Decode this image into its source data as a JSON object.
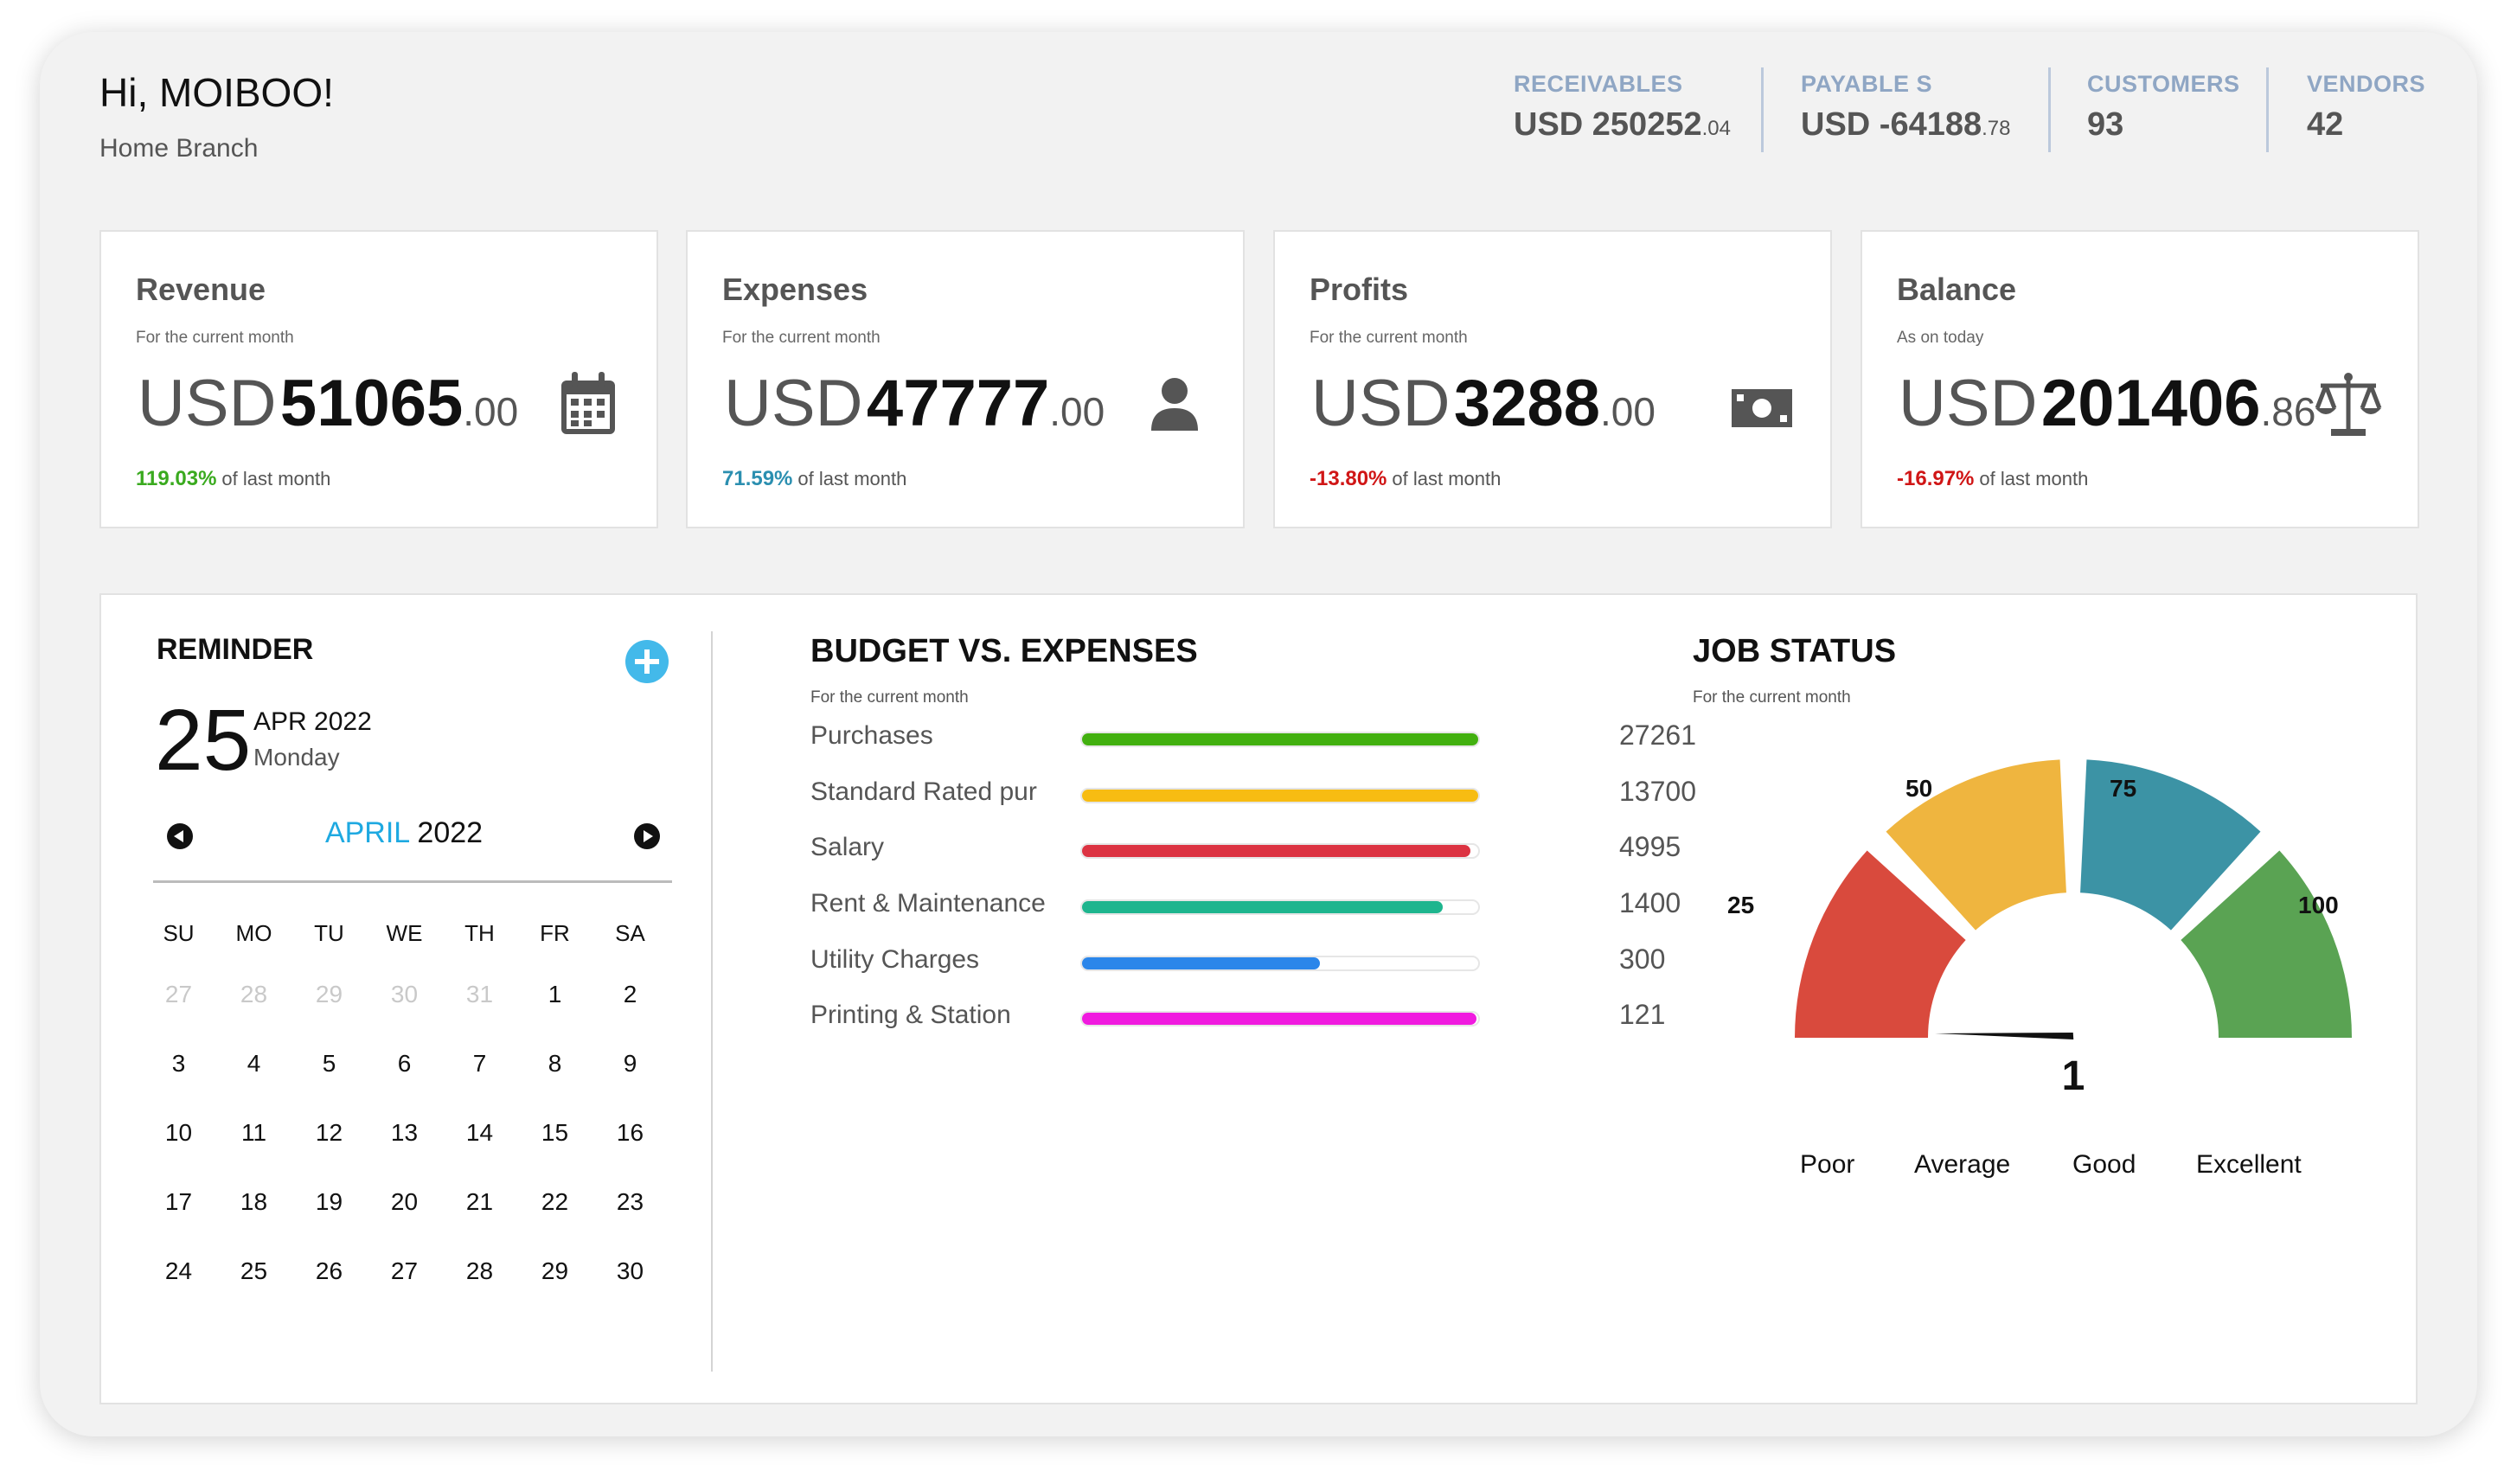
{
  "header": {
    "greeting": "Hi, MOIBOO!",
    "branch": "Home Branch"
  },
  "stats": [
    {
      "label": "RECEIVABLES",
      "value": "USD 250252",
      "decimal": ".04"
    },
    {
      "label": "PAYABLE S",
      "value": "USD -64188",
      "decimal": ".78"
    },
    {
      "label": "CUSTOMERS",
      "value": "93",
      "decimal": ""
    },
    {
      "label": "VENDORS",
      "value": "42",
      "decimal": ""
    }
  ],
  "cards": [
    {
      "title": "Revenue",
      "subtitle": "For the current month",
      "currency": "USD",
      "int": "51065",
      "dec": ".00",
      "percent": "119.03%",
      "percent_color": "#3aaa1f",
      "percent_text": "of last month",
      "icon": "calendar-icon"
    },
    {
      "title": "Expenses",
      "subtitle": "For the current month",
      "currency": "USD",
      "int": "47777",
      "dec": ".00",
      "percent": "71.59%",
      "percent_color": "#2b8fb0",
      "percent_text": "of last month",
      "icon": "user-icon"
    },
    {
      "title": "Profits",
      "subtitle": "For the current month",
      "currency": "USD",
      "int": "3288",
      "dec": ".00",
      "percent": "-13.80%",
      "percent_color": "#d01616",
      "percent_text": "of last month",
      "icon": "money-icon"
    },
    {
      "title": "Balance",
      "subtitle": "As on today",
      "currency": "USD",
      "int": "201406",
      "dec": ".86",
      "percent": "-16.97%",
      "percent_color": "#d01616",
      "percent_text": "of last month",
      "icon": "scale-icon"
    }
  ],
  "reminder": {
    "title": "REMINDER",
    "day": "25",
    "month_year": "APR 2022",
    "weekday": "Monday",
    "calendar_month": "APRIL",
    "calendar_year": "2022",
    "weekdays": [
      "SU",
      "MO",
      "TU",
      "WE",
      "TH",
      "FR",
      "SA"
    ],
    "weeks": [
      [
        "27",
        "28",
        "29",
        "30",
        "31",
        "1",
        "2"
      ],
      [
        "3",
        "4",
        "5",
        "6",
        "7",
        "8",
        "9"
      ],
      [
        "10",
        "11",
        "12",
        "13",
        "14",
        "15",
        "16"
      ],
      [
        "17",
        "18",
        "19",
        "20",
        "21",
        "22",
        "23"
      ],
      [
        "24",
        "25",
        "26",
        "27",
        "28",
        "29",
        "30"
      ]
    ],
    "other_month_cells": 5
  },
  "budget": {
    "title": "BUDGET VS. EXPENSES",
    "subtitle": "For the current month",
    "items": [
      {
        "name": "Purchases",
        "value": "27261",
        "fraction": 1.0,
        "color": "#42b00f"
      },
      {
        "name": "Standard Rated pur",
        "value": "13700",
        "fraction": 1.0,
        "color": "#f7bc12"
      },
      {
        "name": "Salary",
        "value": "4995",
        "fraction": 0.98,
        "color": "#dc3342"
      },
      {
        "name": "Rent & Maintenance",
        "value": "1400",
        "fraction": 0.91,
        "color": "#1eb58e"
      },
      {
        "name": "Utility Charges",
        "value": "300",
        "fraction": 0.6,
        "color": "#2b86ea"
      },
      {
        "name": "Printing & Station",
        "value": "121",
        "fraction": 0.995,
        "color": "#f01adf"
      }
    ]
  },
  "job_status": {
    "title": "JOB STATUS",
    "subtitle": "For the current month",
    "value": "1",
    "value_num": 1,
    "ticks": [
      "25",
      "50",
      "75",
      "100"
    ],
    "segments": [
      {
        "label": "Poor",
        "color": "#d94a3d"
      },
      {
        "label": "Average",
        "color": "#efb53f"
      },
      {
        "label": "Good",
        "color": "#3c93a5"
      },
      {
        "label": "Excellent",
        "color": "#5aa353"
      }
    ]
  }
}
